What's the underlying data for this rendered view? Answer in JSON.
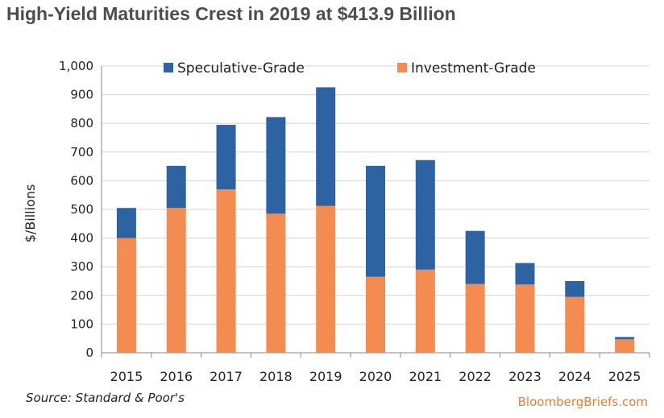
{
  "title": "High-Yield Maturities Crest in 2019 at $413.9 Billion",
  "source": "Source: Standard & Poor's",
  "brand": "BloombergBriefs.com",
  "colors": {
    "speculative": "#2e63a3",
    "investment": "#f48c52",
    "grid": "#d4d4d4",
    "axis": "#888888",
    "text": "#222222"
  },
  "chart_data": {
    "type": "bar",
    "stacked": true,
    "categories": [
      "2015",
      "2016",
      "2017",
      "2018",
      "2019",
      "2020",
      "2021",
      "2022",
      "2023",
      "2024",
      "2025"
    ],
    "series": [
      {
        "name": "Investment-Grade",
        "values": [
          400,
          505,
          570,
          485,
          512,
          265,
          290,
          240,
          238,
          195,
          47
        ]
      },
      {
        "name": "Speculative-Grade",
        "values": [
          105,
          147,
          225,
          337,
          413.9,
          387,
          382,
          185,
          75,
          55,
          8
        ]
      }
    ],
    "ylabel": "$/Billions",
    "xlabel": "",
    "ylim": [
      0,
      1000
    ],
    "yticks": [
      0,
      100,
      200,
      300,
      400,
      500,
      600,
      700,
      800,
      900,
      1000
    ],
    "ytick_labels": [
      "0",
      "100",
      "200",
      "300",
      "400",
      "500",
      "600",
      "700",
      "800",
      "900",
      "1,000"
    ],
    "grid": true,
    "legend_position": "top",
    "legend_order": [
      "Speculative-Grade",
      "Investment-Grade"
    ]
  }
}
